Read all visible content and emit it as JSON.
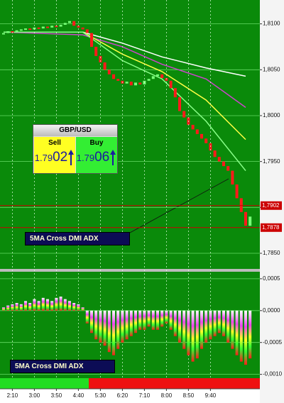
{
  "chart_data": [
    {
      "type": "candlestick",
      "up_color": "#77ff77",
      "down_color": "#ff1a1a",
      "open": [
        1.8089,
        1.809,
        1.8092,
        1.8091,
        1.8093,
        1.8094,
        1.8095,
        1.8094,
        1.8096,
        1.8095,
        1.8097,
        1.8096,
        1.8098,
        1.8097,
        1.8099,
        1.8101,
        1.8103,
        1.8098,
        1.8096,
        1.8094,
        1.809,
        1.8075,
        1.8065,
        1.8058,
        1.805,
        1.8045,
        1.804,
        1.8038,
        1.8035,
        1.8037,
        1.8033,
        1.8036,
        1.8034,
        1.8038,
        1.804,
        1.8043,
        1.8045,
        1.8041,
        1.8038,
        1.803,
        1.802,
        1.8005,
        1.7998,
        1.799,
        1.7985,
        1.798,
        1.7975,
        1.797,
        1.7962,
        1.7955,
        1.795,
        1.7945,
        1.794,
        1.7925,
        1.791,
        1.7895,
        1.788
      ],
      "close": [
        1.809,
        1.8092,
        1.8091,
        1.8093,
        1.8094,
        1.8095,
        1.8094,
        1.8096,
        1.8095,
        1.8097,
        1.8096,
        1.8098,
        1.8097,
        1.8099,
        1.8101,
        1.8103,
        1.8098,
        1.8096,
        1.8094,
        1.809,
        1.8075,
        1.8065,
        1.8058,
        1.805,
        1.8045,
        1.804,
        1.8038,
        1.8035,
        1.8037,
        1.8033,
        1.8036,
        1.8034,
        1.8038,
        1.804,
        1.8043,
        1.8045,
        1.8041,
        1.8038,
        1.803,
        1.802,
        1.8005,
        1.7998,
        1.799,
        1.7985,
        1.798,
        1.7975,
        1.797,
        1.7962,
        1.7955,
        1.795,
        1.7945,
        1.794,
        1.7925,
        1.791,
        1.7895,
        1.788,
        1.789
      ],
      "ma_x": [
        0,
        18,
        27,
        36,
        46,
        55
      ],
      "ma_lines": [
        {
          "color": "#ffffff",
          "values": [
            1.8091,
            1.8091,
            1.8079,
            1.8064,
            1.8052,
            1.8043
          ]
        },
        {
          "color": "#cc44cc",
          "values": [
            1.8091,
            1.8088,
            1.8075,
            1.8056,
            1.804,
            1.8009
          ]
        },
        {
          "color": "#ffff44",
          "values": [
            1.8091,
            1.8091,
            1.8067,
            1.8048,
            1.8017,
            1.7974
          ]
        },
        {
          "color": "#88ff88",
          "values": [
            1.8091,
            1.8091,
            1.806,
            1.804,
            1.7994,
            1.794
          ]
        }
      ],
      "price_markers": [
        {
          "value": 1.7902,
          "label": "1,7902"
        },
        {
          "value": 1.7878,
          "label": "1,7878"
        }
      ],
      "ylim": [
        1.7833,
        1.8126
      ],
      "yticks": [
        {
          "value": 1.81,
          "label": "1,8100"
        },
        {
          "value": 1.805,
          "label": "1,8050"
        },
        {
          "value": 1.8,
          "label": "1,8000"
        },
        {
          "value": 1.795,
          "label": "1,7950"
        },
        {
          "value": 1.79,
          "label": "1,7900"
        },
        {
          "value": 1.785,
          "label": "1,7850"
        }
      ],
      "grid": true
    },
    {
      "type": "bar",
      "categories": [
        null,
        null,
        "2:10",
        null,
        null,
        null,
        null,
        "3:00",
        null,
        null,
        null,
        null,
        "3:50",
        null,
        null,
        null,
        null,
        "4:40",
        null,
        null,
        null,
        null,
        "5:30",
        null,
        null,
        null,
        null,
        "6:20",
        null,
        null,
        null,
        null,
        "7:10",
        null,
        null,
        null,
        null,
        "8:00",
        null,
        null,
        null,
        null,
        "8:50",
        null,
        null,
        null,
        null,
        "9:40",
        null,
        null,
        null,
        null,
        null,
        null,
        null,
        null,
        null
      ],
      "values": [
        5e-05,
        8e-05,
        0.0001,
        0.00012,
        0.0001,
        0.00015,
        0.00012,
        0.00018,
        0.00015,
        0.0002,
        0.00018,
        0.00015,
        0.0002,
        0.00022,
        0.00018,
        0.00015,
        0.00012,
        0.0001,
        5e-05,
        -0.0002,
        -0.00035,
        -0.00045,
        -0.0005,
        -0.00055,
        -0.00065,
        -0.0007,
        -0.0006,
        -0.0005,
        -0.00045,
        -0.0004,
        -0.00035,
        -0.0003,
        -0.0003,
        -0.00025,
        -0.0003,
        -0.0003,
        -0.00025,
        -0.0002,
        -0.0003,
        -0.0004,
        -0.0005,
        -0.0006,
        -0.0007,
        -0.0008,
        -0.00075,
        -0.0006,
        -0.0005,
        -0.00045,
        -0.0004,
        -0.00035,
        -0.0004,
        -0.0005,
        -0.0006,
        -0.0007,
        -0.0008,
        -0.00085,
        -0.00075
      ],
      "ylim": [
        -0.00106,
        0.00061
      ],
      "yticks": [
        {
          "value": 0.0005,
          "label": "0,0005"
        },
        {
          "value": 0,
          "label": "0,0000"
        },
        {
          "value": -0.0005,
          "label": "-0,0005"
        },
        {
          "value": -0.001,
          "label": "-0,0010"
        }
      ],
      "grid": true
    }
  ],
  "widget": {
    "title": "GBP/USD",
    "sell_label": "Sell",
    "sell_head": "1.79",
    "sell_tail": "02",
    "buy_label": "Buy",
    "buy_head": "1.79",
    "buy_tail": "06"
  },
  "annotations": [
    "5MA Cross DMI ADX",
    "5MA Cross DMI ADX"
  ]
}
